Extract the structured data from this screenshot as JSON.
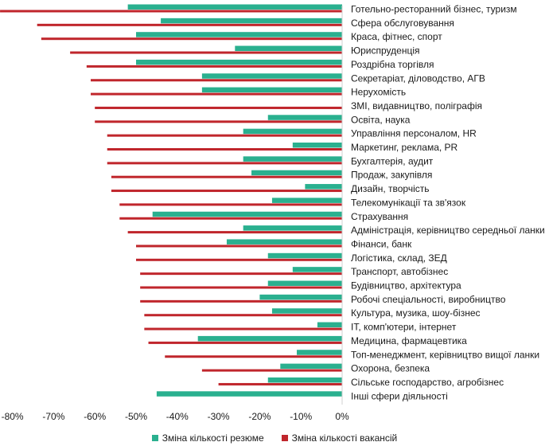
{
  "chart_data": {
    "type": "bar",
    "orientation": "horizontal",
    "categories": [
      "Готельно-ресторанний бізнес, туризм",
      "Сфера обслуговування",
      "Краса, фітнес, спорт",
      "Юриспруденція",
      "Роздрібна торгівля",
      "Секретаріат, діловодство, АГВ",
      "Нерухомість",
      "ЗМІ, видавництво, поліграфія",
      "Освіта, наука",
      "Управління персоналом,  HR",
      "Маркетинг, реклама, PR",
      "Бухгалтерія, аудит",
      "Продаж, закупівля",
      "Дизайн, творчість",
      "Телекомунікації та зв'язок",
      "Страхування",
      "Адміністрація, керівництво середньої ланки",
      "Фінанси, банк",
      "Логістика, склад, ЗЕД",
      "Транспорт, автобізнес",
      "Будівництво, архітектура",
      "Робочі спеціальності, виробництво",
      "Культура, музика, шоу-бізнес",
      "IT, комп'ютери, інтернет",
      "Медицина, фармацевтика",
      "Топ-менеджмент, керівництво вищої ланки",
      "Охорона, безпека",
      "Сільське господарство, агробізнес",
      "Інші сфери діяльності"
    ],
    "series": [
      {
        "name": "Зміна кількості резюме",
        "color": "#2ab08f",
        "values": [
          -52,
          -44,
          -50,
          -26,
          -50,
          -34,
          -34,
          0,
          -18,
          -24,
          -12,
          -24,
          -22,
          -9,
          -17,
          -46,
          -24,
          -28,
          -18,
          -12,
          -18,
          -20,
          -17,
          -6,
          -35,
          -11,
          -15,
          -18,
          -45
        ]
      },
      {
        "name": "Зміна кількості вакансій",
        "color": "#c0262c",
        "values": [
          -83,
          -74,
          -73,
          -66,
          -62,
          -61,
          -61,
          -60,
          -60,
          -57,
          -57,
          -57,
          -56,
          -56,
          -54,
          -54,
          -52,
          -50,
          -50,
          -49,
          -49,
          -49,
          -48,
          -48,
          -47,
          -43,
          -34,
          -30,
          0
        ]
      }
    ],
    "x_ticks": [
      "-80%",
      "-70%",
      "-60%",
      "-50%",
      "-40%",
      "-30%",
      "-20%",
      "-10%",
      "0%"
    ],
    "xlim": [
      -83,
      0
    ],
    "grid": false,
    "legend": "bottom"
  }
}
